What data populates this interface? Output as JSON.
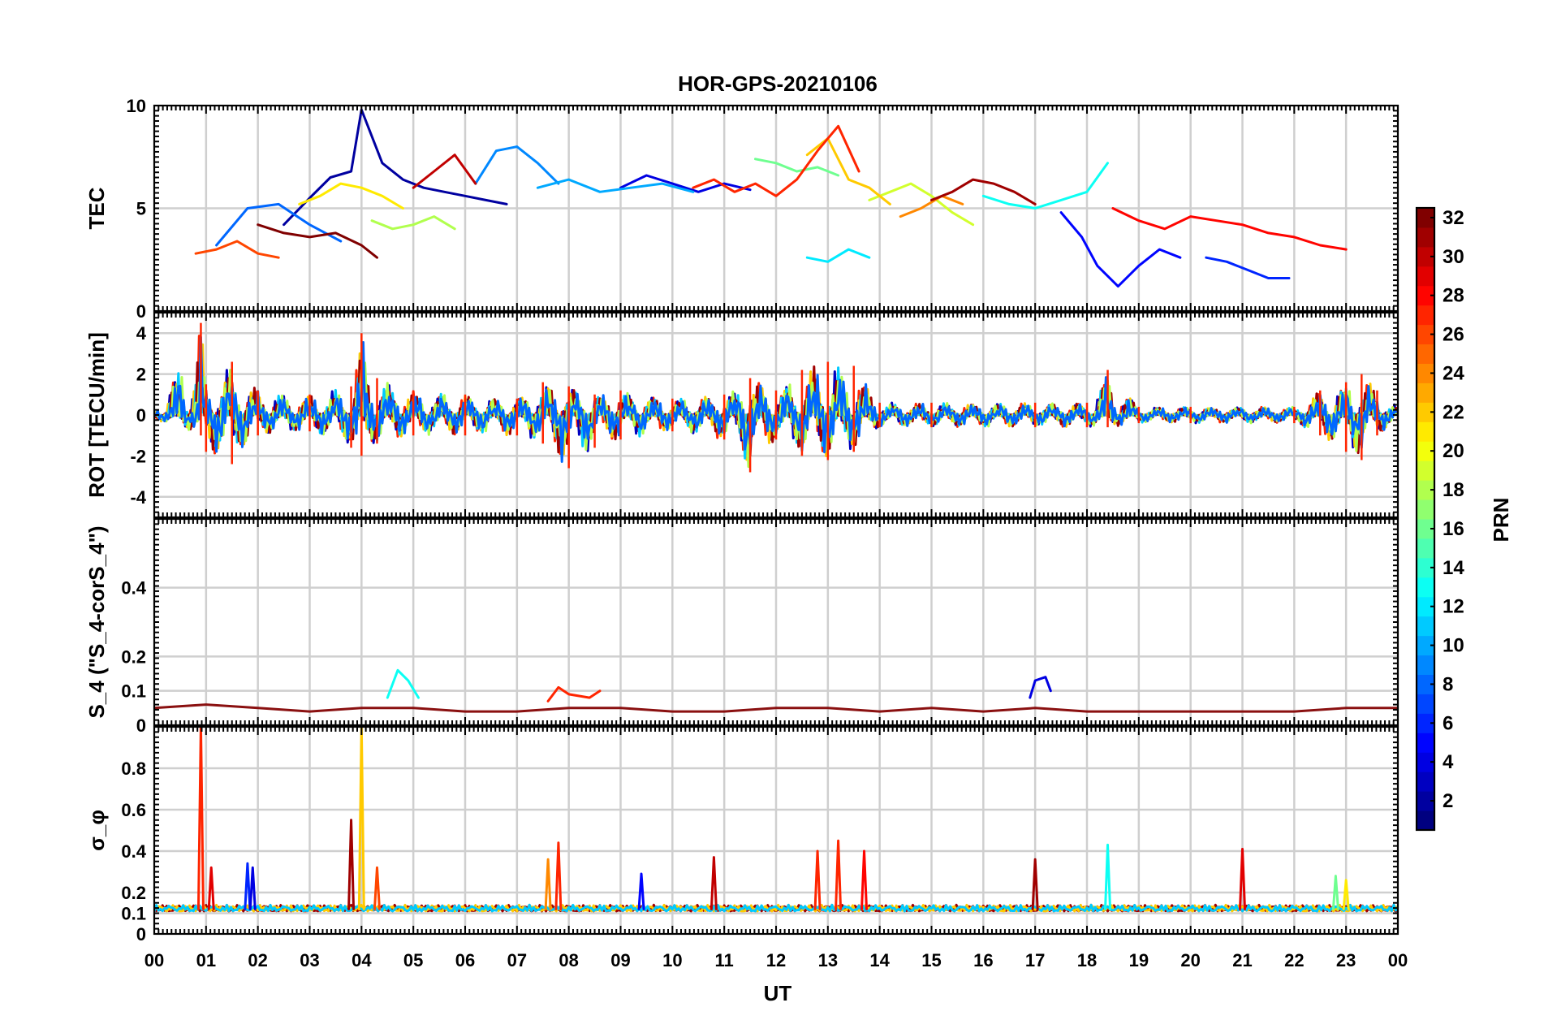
{
  "figure": {
    "title": "HOR-GPS-20210106",
    "xlabel": "UT",
    "x_tick_labels": [
      "00",
      "01",
      "02",
      "03",
      "04",
      "05",
      "06",
      "07",
      "08",
      "09",
      "10",
      "11",
      "12",
      "13",
      "14",
      "15",
      "16",
      "17",
      "18",
      "19",
      "20",
      "21",
      "22",
      "23",
      "00"
    ],
    "colorbar": {
      "label": "PRN",
      "colormap": "jet",
      "range": [
        1,
        32
      ],
      "tick_labels": [
        "2",
        "4",
        "6",
        "8",
        "10",
        "12",
        "14",
        "16",
        "18",
        "20",
        "22",
        "24",
        "26",
        "28",
        "30",
        "32"
      ]
    }
  },
  "chart_data": [
    {
      "type": "line",
      "panel": "TEC",
      "ylabel": "TEC",
      "xlim": [
        0,
        24
      ],
      "ylim": [
        0,
        10
      ],
      "y_tick_labels": [
        "0",
        "5",
        "10"
      ],
      "grid": true,
      "series": [
        {
          "prn": 2,
          "x": [
            2.5,
            3.0,
            3.4,
            3.8,
            4.0,
            4.4,
            4.8,
            5.2,
            5.6,
            6.0,
            6.4,
            6.8
          ],
          "y": [
            4.2,
            5.5,
            6.5,
            6.8,
            9.8,
            7.2,
            6.4,
            6.0,
            5.8,
            5.6,
            5.4,
            5.2
          ]
        },
        {
          "prn": 4,
          "x": [
            9.0,
            9.5,
            10.0,
            10.5,
            11.0,
            11.5
          ],
          "y": [
            6.0,
            6.6,
            6.2,
            5.8,
            6.2,
            5.9
          ]
        },
        {
          "prn": 5,
          "x": [
            17.5,
            17.9,
            18.2,
            18.6,
            19.0,
            19.4,
            19.8
          ],
          "y": [
            4.8,
            3.6,
            2.2,
            1.2,
            2.2,
            3.0,
            2.6
          ]
        },
        {
          "prn": 6,
          "x": [
            20.3,
            20.7,
            21.1,
            21.5,
            21.9
          ],
          "y": [
            2.6,
            2.4,
            2.0,
            1.6,
            1.6
          ]
        },
        {
          "prn": 8,
          "x": [
            1.2,
            1.8,
            2.4,
            3.0,
            3.6
          ],
          "y": [
            3.2,
            5.0,
            5.2,
            4.2,
            3.4
          ]
        },
        {
          "prn": 9,
          "x": [
            6.2,
            6.6,
            7.0,
            7.4,
            7.8
          ],
          "y": [
            6.2,
            7.8,
            8.0,
            7.2,
            6.2
          ]
        },
        {
          "prn": 10,
          "x": [
            7.4,
            8.0,
            8.6,
            9.2,
            9.8,
            10.4
          ],
          "y": [
            6.0,
            6.4,
            5.8,
            6.0,
            6.2,
            5.8
          ]
        },
        {
          "prn": 12,
          "x": [
            12.6,
            13.0,
            13.4,
            13.8
          ],
          "y": [
            2.6,
            2.4,
            3.0,
            2.6
          ]
        },
        {
          "prn": 13,
          "x": [
            16.0,
            16.5,
            17.0,
            17.5,
            18.0,
            18.4
          ],
          "y": [
            5.6,
            5.2,
            5.0,
            5.4,
            5.8,
            7.2
          ]
        },
        {
          "prn": 16,
          "x": [
            11.6,
            12.0,
            12.4,
            12.8,
            13.2
          ],
          "y": [
            7.4,
            7.2,
            6.8,
            7.0,
            6.6
          ]
        },
        {
          "prn": 18,
          "x": [
            4.2,
            4.6,
            5.0,
            5.4,
            5.8
          ],
          "y": [
            4.4,
            4.0,
            4.2,
            4.6,
            4.0
          ]
        },
        {
          "prn": 19,
          "x": [
            13.8,
            14.2,
            14.6,
            15.0,
            15.4,
            15.8
          ],
          "y": [
            5.4,
            5.8,
            6.2,
            5.6,
            4.8,
            4.2
          ]
        },
        {
          "prn": 21,
          "x": [
            2.8,
            3.2,
            3.6,
            4.0,
            4.4,
            4.8
          ],
          "y": [
            5.2,
            5.6,
            6.2,
            6.0,
            5.6,
            5.0
          ]
        },
        {
          "prn": 22,
          "x": [
            12.6,
            13.0,
            13.4,
            13.8,
            14.2
          ],
          "y": [
            7.6,
            8.4,
            6.4,
            6.0,
            5.2
          ]
        },
        {
          "prn": 24,
          "x": [
            14.4,
            14.8,
            15.2,
            15.6
          ],
          "y": [
            4.6,
            5.0,
            5.6,
            5.2
          ]
        },
        {
          "prn": 26,
          "x": [
            0.8,
            1.2,
            1.6,
            2.0,
            2.4
          ],
          "y": [
            2.8,
            3.0,
            3.4,
            2.8,
            2.6
          ]
        },
        {
          "prn": 27,
          "x": [
            10.4,
            10.8,
            11.2,
            11.6,
            12.0,
            12.4,
            12.8,
            13.2,
            13.6
          ],
          "y": [
            6.0,
            6.4,
            5.8,
            6.2,
            5.6,
            6.4,
            7.8,
            9.0,
            6.8
          ]
        },
        {
          "prn": 28,
          "x": [
            18.5,
            19.0,
            19.5,
            20.0,
            20.5,
            21.0,
            21.5,
            22.0,
            22.5,
            23.0
          ],
          "y": [
            5.0,
            4.4,
            4.0,
            4.6,
            4.4,
            4.2,
            3.8,
            3.6,
            3.2,
            3.0
          ]
        },
        {
          "prn": 30,
          "x": [
            5.0,
            5.4,
            5.8,
            6.2
          ],
          "y": [
            6.0,
            6.8,
            7.6,
            6.2
          ]
        },
        {
          "prn": 31,
          "x": [
            15.0,
            15.4,
            15.8,
            16.2,
            16.6,
            17.0
          ],
          "y": [
            5.4,
            5.8,
            6.4,
            6.2,
            5.8,
            5.2
          ]
        },
        {
          "prn": 32,
          "x": [
            2.0,
            2.5,
            3.0,
            3.5,
            4.0,
            4.3
          ],
          "y": [
            4.2,
            3.8,
            3.6,
            3.8,
            3.2,
            2.6
          ]
        }
      ]
    },
    {
      "type": "line",
      "panel": "ROT",
      "ylabel": "ROT [TECU/min]",
      "xlim": [
        0,
        24
      ],
      "ylim": [
        -5,
        5
      ],
      "y_tick_labels": [
        "-4",
        "-2",
        "0",
        "2",
        "4"
      ],
      "grid": true,
      "envelope": {
        "x": [
          0,
          0.9,
          1.0,
          1.5,
          2.0,
          3.0,
          3.8,
          4.0,
          4.3,
          5.0,
          6.0,
          7.0,
          7.5,
          8.0,
          8.5,
          9.0,
          10.0,
          11.0,
          11.5,
          12.0,
          12.5,
          13.0,
          13.5,
          14.0,
          15.0,
          17.0,
          18.0,
          18.4,
          19.0,
          20.0,
          22.0,
          22.5,
          23.0,
          23.3,
          23.6,
          24
        ],
        "max": [
          0.2,
          4.5,
          1.5,
          2.6,
          1.2,
          1.0,
          1.4,
          4.0,
          1.8,
          1.2,
          1.0,
          0.8,
          1.6,
          1.4,
          1.0,
          1.2,
          0.8,
          1.0,
          1.8,
          1.2,
          2.2,
          2.6,
          2.4,
          0.6,
          0.6,
          0.6,
          0.6,
          2.2,
          0.4,
          0.4,
          0.4,
          1.2,
          1.6,
          2.0,
          1.2,
          0.4
        ],
        "min": [
          -0.2,
          -1.0,
          -1.8,
          -2.4,
          -1.0,
          -0.8,
          -1.6,
          -2.0,
          -1.4,
          -1.0,
          -1.0,
          -1.0,
          -1.4,
          -2.6,
          -1.6,
          -1.2,
          -0.8,
          -1.2,
          -2.8,
          -1.2,
          -2.0,
          -2.2,
          -1.8,
          -0.6,
          -0.6,
          -0.6,
          -0.6,
          -0.6,
          -0.4,
          -0.4,
          -0.4,
          -1.0,
          -1.8,
          -2.2,
          -1.0,
          -0.4
        ]
      }
    },
    {
      "type": "line",
      "panel": "S4",
      "ylabel": "S_4 (\"S_4-corS_4\")",
      "xlim": [
        0,
        24
      ],
      "ylim": [
        0,
        0.6
      ],
      "y_tick_labels": [
        "0",
        "0.1",
        "0.2",
        "0.4"
      ],
      "grid": true,
      "series": [
        {
          "name_hint": "baseline",
          "x": [
            0,
            1,
            2,
            3,
            4,
            5,
            6,
            7,
            8,
            9,
            10,
            11,
            12,
            13,
            14,
            15,
            16,
            17,
            18,
            19,
            20,
            21,
            22,
            23,
            24
          ],
          "y": [
            0.05,
            0.06,
            0.05,
            0.04,
            0.05,
            0.05,
            0.04,
            0.04,
            0.05,
            0.05,
            0.04,
            0.04,
            0.05,
            0.05,
            0.04,
            0.05,
            0.04,
            0.05,
            0.04,
            0.04,
            0.04,
            0.04,
            0.04,
            0.05,
            0.05
          ]
        },
        {
          "prn": 13,
          "x": [
            4.5,
            4.7,
            4.9,
            5.1
          ],
          "y": [
            0.08,
            0.16,
            0.13,
            0.08
          ]
        },
        {
          "prn": 27,
          "x": [
            7.6,
            7.8,
            8.0,
            8.4,
            8.6
          ],
          "y": [
            0.07,
            0.11,
            0.09,
            0.08,
            0.1
          ]
        },
        {
          "prn": 4,
          "x": [
            16.9,
            17.0,
            17.2,
            17.3
          ],
          "y": [
            0.08,
            0.13,
            0.14,
            0.1
          ]
        }
      ]
    },
    {
      "type": "line",
      "panel": "sigma_phi",
      "ylabel": "σ_φ",
      "xlim": [
        0,
        24
      ],
      "ylim": [
        0,
        1.0
      ],
      "y_tick_labels": [
        "0",
        "0.1",
        "0.2",
        "0.4",
        "0.6",
        "0.8"
      ],
      "grid": true,
      "spikes": [
        {
          "prn": 27,
          "x": 0.9,
          "y": 1.0
        },
        {
          "prn": 29,
          "x": 1.1,
          "y": 0.32
        },
        {
          "prn": 6,
          "x": 1.8,
          "y": 0.34
        },
        {
          "prn": 4,
          "x": 1.9,
          "y": 0.32
        },
        {
          "prn": 31,
          "x": 3.8,
          "y": 0.55
        },
        {
          "prn": 22,
          "x": 4.0,
          "y": 1.0
        },
        {
          "prn": 26,
          "x": 4.3,
          "y": 0.32
        },
        {
          "prn": 24,
          "x": 7.6,
          "y": 0.36
        },
        {
          "prn": 27,
          "x": 7.8,
          "y": 0.44
        },
        {
          "prn": 5,
          "x": 9.4,
          "y": 0.29
        },
        {
          "prn": 30,
          "x": 10.8,
          "y": 0.37
        },
        {
          "prn": 27,
          "x": 12.8,
          "y": 0.4
        },
        {
          "prn": 27,
          "x": 13.2,
          "y": 0.45
        },
        {
          "prn": 28,
          "x": 13.7,
          "y": 0.4
        },
        {
          "prn": 31,
          "x": 17.0,
          "y": 0.36
        },
        {
          "prn": 13,
          "x": 18.4,
          "y": 0.43
        },
        {
          "prn": 29,
          "x": 21.0,
          "y": 0.41
        },
        {
          "prn": 16,
          "x": 22.8,
          "y": 0.28
        },
        {
          "prn": 21,
          "x": 23.0,
          "y": 0.26
        }
      ],
      "baseline": {
        "x": [
          0,
          24
        ],
        "y": [
          0.12,
          0.12
        ]
      }
    }
  ]
}
